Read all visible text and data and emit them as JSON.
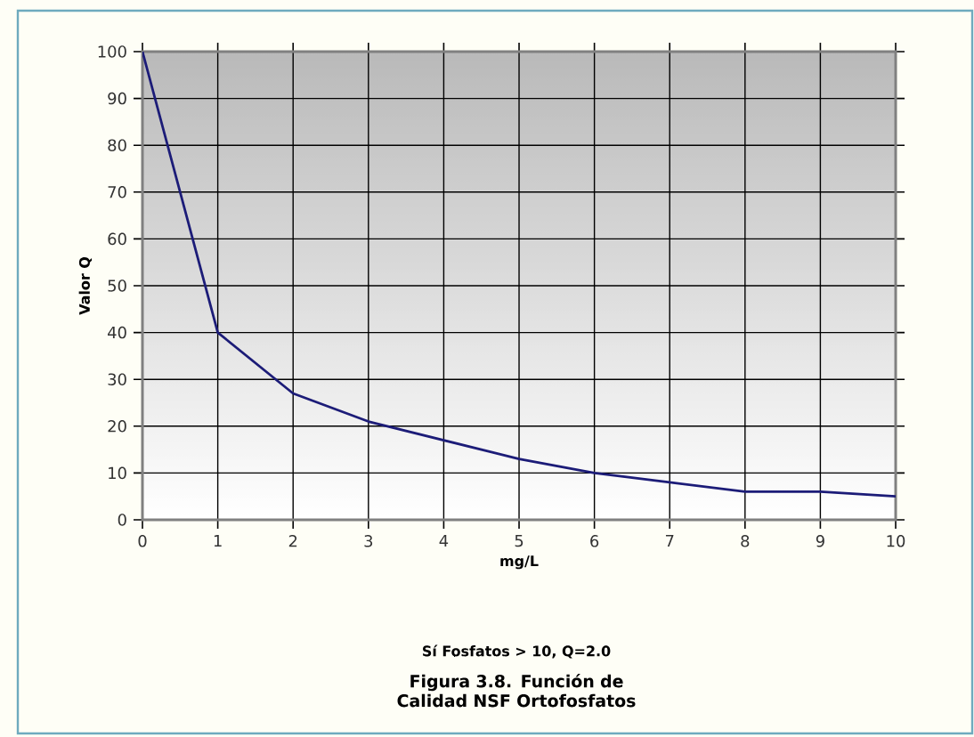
{
  "chart_data": {
    "type": "line",
    "title": "Figura 3.8. Función de Calidad NSF Ortofosfatos",
    "xlabel": "mg/L",
    "ylabel": "Valor Q",
    "annotations": [
      "Sí Fosfatos > 10, Q=2.0"
    ],
    "x": [
      0,
      1,
      2,
      3,
      4,
      5,
      6,
      7,
      8,
      9,
      10
    ],
    "series": [
      {
        "color": "#1c1c78",
        "values": [
          100,
          40,
          27,
          21,
          17,
          13,
          10,
          8,
          6,
          6,
          5
        ]
      }
    ],
    "xlim": [
      0,
      10
    ],
    "ylim": [
      0,
      100
    ],
    "xticks": [
      0,
      1,
      2,
      3,
      4,
      5,
      6,
      7,
      8,
      9,
      10
    ],
    "yticks": [
      0,
      10,
      20,
      30,
      40,
      50,
      60,
      70,
      80,
      90,
      100
    ],
    "grid": true,
    "marker": "none",
    "line_style": "solid"
  }
}
